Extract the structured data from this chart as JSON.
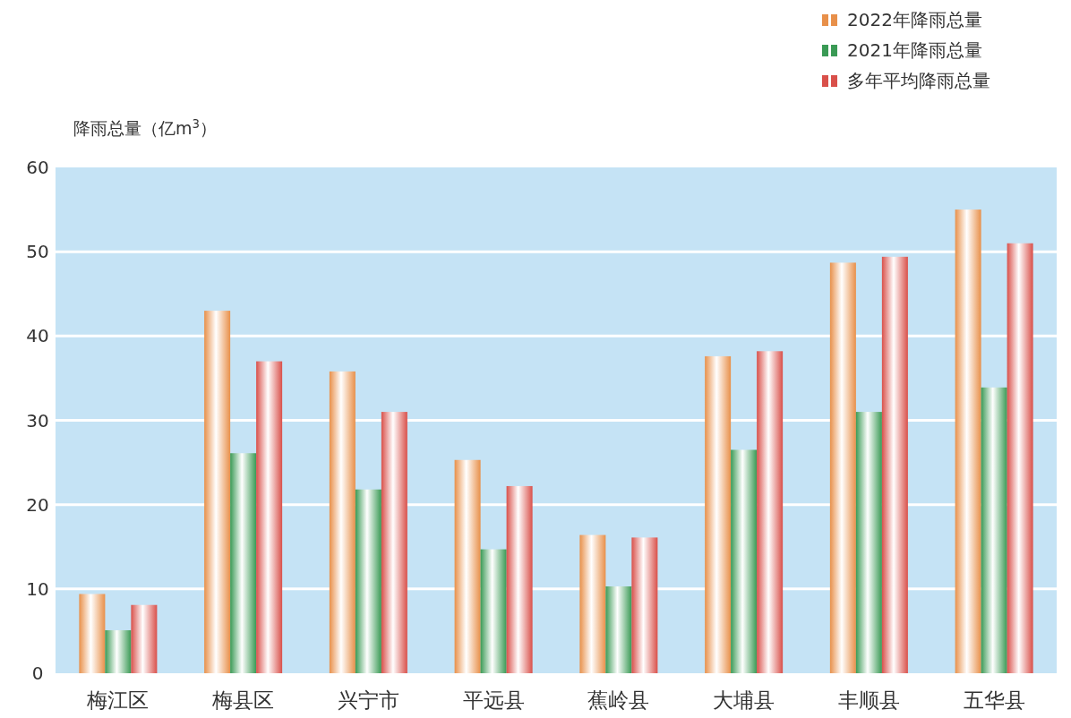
{
  "chart_data": {
    "type": "bar",
    "ylabel": "降雨总量（亿m$^{3}$）",
    "categories": [
      "梅江区",
      "梅县区",
      "兴宁市",
      "平远县",
      "蕉岭县",
      "大埔县",
      "丰顺县",
      "五华县"
    ],
    "series": [
      {
        "name": "2022年降雨总量",
        "color": "#e8904a",
        "values": [
          9.4,
          43.0,
          35.8,
          25.3,
          16.4,
          37.6,
          48.7,
          55.0
        ]
      },
      {
        "name": "2021年降雨总量",
        "color": "#3a9a55",
        "values": [
          5.1,
          26.1,
          21.8,
          14.7,
          10.3,
          26.5,
          31.0,
          33.9
        ]
      },
      {
        "name": "多年平均降雨总量",
        "color": "#d9504a",
        "values": [
          8.1,
          37.0,
          31.0,
          22.2,
          16.1,
          38.2,
          49.4,
          51.0
        ]
      }
    ],
    "ylim": [
      0,
      60
    ],
    "yticks": [
      0,
      10,
      20,
      30,
      40,
      50,
      60
    ],
    "grid": "y",
    "legend": "top right"
  }
}
